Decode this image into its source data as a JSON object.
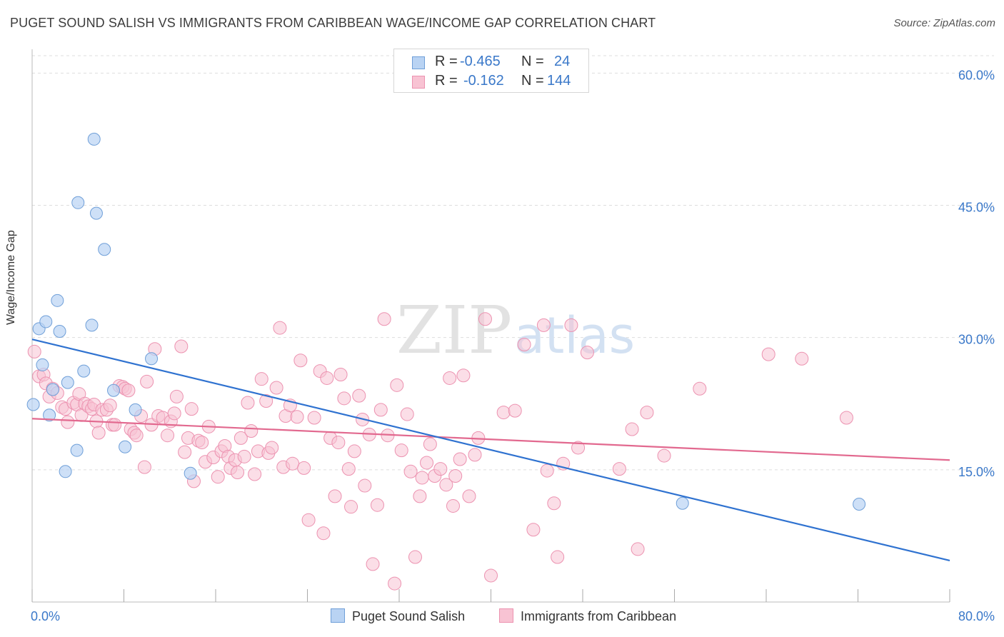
{
  "title": "PUGET SOUND SALISH VS IMMIGRANTS FROM CARIBBEAN WAGE/INCOME GAP CORRELATION CHART",
  "source": "Source: ZipAtlas.com",
  "watermark": {
    "zip": "ZIP",
    "atlas": "atlas"
  },
  "stats": {
    "row1": {
      "r_label": "R =",
      "r_value": "-0.465",
      "n_label": "N =",
      "n_value": "24"
    },
    "row2": {
      "r_label": "R =",
      "r_value": "-0.162",
      "n_label": "N =",
      "n_value": "144"
    }
  },
  "legend": {
    "item1": "Puget Sound Salish",
    "item2": "Immigrants from Caribbean"
  },
  "colors": {
    "blue_fill": "#b9d3f3",
    "blue_stroke": "#6f9fd8",
    "blue_line": "#2f72d0",
    "pink_fill": "#f8c3d3",
    "pink_stroke": "#ec92b0",
    "pink_line": "#e2698f",
    "tick_text": "#3a78c9",
    "grid": "#dddddd"
  },
  "chart_data": {
    "type": "scatter",
    "title": "PUGET SOUND SALISH VS IMMIGRANTS FROM CARIBBEAN WAGE/INCOME GAP CORRELATION CHART",
    "xlabel": "",
    "ylabel": "Wage/Income Gap",
    "xlim": [
      0,
      80
    ],
    "ylim": [
      0,
      62.7
    ],
    "x_tick_labels": [
      "0.0%",
      "80.0%"
    ],
    "y_ticks": [
      15,
      30,
      45,
      60
    ],
    "y_tick_labels": [
      "15.0%",
      "30.0%",
      "45.0%",
      "60.0%"
    ],
    "series": [
      {
        "name": "Puget Sound Salish",
        "r": -0.465,
        "n": 24,
        "trend": {
          "x": [
            0,
            80
          ],
          "y": [
            29.8,
            4.7
          ]
        },
        "points": [
          [
            0.1,
            22.4
          ],
          [
            0.6,
            31.0
          ],
          [
            0.9,
            26.9
          ],
          [
            1.2,
            31.8
          ],
          [
            1.5,
            21.2
          ],
          [
            1.8,
            24.1
          ],
          [
            2.2,
            34.2
          ],
          [
            2.4,
            30.7
          ],
          [
            2.9,
            14.8
          ],
          [
            3.1,
            24.9
          ],
          [
            3.9,
            17.2
          ],
          [
            4.0,
            45.3
          ],
          [
            4.5,
            26.2
          ],
          [
            5.2,
            31.4
          ],
          [
            5.4,
            52.5
          ],
          [
            5.6,
            44.1
          ],
          [
            6.3,
            40.0
          ],
          [
            7.1,
            24.0
          ],
          [
            8.1,
            17.6
          ],
          [
            9.0,
            21.8
          ],
          [
            10.4,
            27.6
          ],
          [
            13.8,
            14.6
          ],
          [
            56.7,
            11.2
          ],
          [
            72.1,
            11.1
          ]
        ]
      },
      {
        "name": "Immigrants from Caribbean",
        "r": -0.162,
        "n": 144,
        "trend": {
          "x": [
            0,
            80
          ],
          "y": [
            20.8,
            16.1
          ]
        },
        "points": [
          [
            0.2,
            28.4
          ],
          [
            0.6,
            25.6
          ],
          [
            1.0,
            25.8
          ],
          [
            1.2,
            24.8
          ],
          [
            1.5,
            23.3
          ],
          [
            1.8,
            24.2
          ],
          [
            2.2,
            23.7
          ],
          [
            2.6,
            22.1
          ],
          [
            2.9,
            21.9
          ],
          [
            3.1,
            20.4
          ],
          [
            3.6,
            22.6
          ],
          [
            3.9,
            22.4
          ],
          [
            4.1,
            23.6
          ],
          [
            4.3,
            21.2
          ],
          [
            4.6,
            22.5
          ],
          [
            4.9,
            22.2
          ],
          [
            5.2,
            21.9
          ],
          [
            5.4,
            22.4
          ],
          [
            5.6,
            20.5
          ],
          [
            5.8,
            19.2
          ],
          [
            6.1,
            21.8
          ],
          [
            6.5,
            21.8
          ],
          [
            6.8,
            22.3
          ],
          [
            7.0,
            20.1
          ],
          [
            7.2,
            20.1
          ],
          [
            7.6,
            24.5
          ],
          [
            7.9,
            24.4
          ],
          [
            8.1,
            24.2
          ],
          [
            8.4,
            24.0
          ],
          [
            8.6,
            19.6
          ],
          [
            8.9,
            19.2
          ],
          [
            9.1,
            18.9
          ],
          [
            9.5,
            21.1
          ],
          [
            9.8,
            15.3
          ],
          [
            10.0,
            25.0
          ],
          [
            10.4,
            20.1
          ],
          [
            10.7,
            28.7
          ],
          [
            11.0,
            21.1
          ],
          [
            11.4,
            20.9
          ],
          [
            11.8,
            18.9
          ],
          [
            12.1,
            20.5
          ],
          [
            12.4,
            21.4
          ],
          [
            12.6,
            23.3
          ],
          [
            13.0,
            29.0
          ],
          [
            13.3,
            17.0
          ],
          [
            13.6,
            18.6
          ],
          [
            13.9,
            21.9
          ],
          [
            14.1,
            13.7
          ],
          [
            14.5,
            18.3
          ],
          [
            14.8,
            18.1
          ],
          [
            15.1,
            15.9
          ],
          [
            15.4,
            19.9
          ],
          [
            15.8,
            16.4
          ],
          [
            16.2,
            14.2
          ],
          [
            16.5,
            17.1
          ],
          [
            16.8,
            17.7
          ],
          [
            17.1,
            16.5
          ],
          [
            17.3,
            15.2
          ],
          [
            17.7,
            16.1
          ],
          [
            17.9,
            14.7
          ],
          [
            18.2,
            18.6
          ],
          [
            18.5,
            16.5
          ],
          [
            18.8,
            22.6
          ],
          [
            19.1,
            19.4
          ],
          [
            19.4,
            14.5
          ],
          [
            19.7,
            17.1
          ],
          [
            20.0,
            25.3
          ],
          [
            20.4,
            22.8
          ],
          [
            20.6,
            16.9
          ],
          [
            20.9,
            17.5
          ],
          [
            21.3,
            24.3
          ],
          [
            21.6,
            31.1
          ],
          [
            21.9,
            15.3
          ],
          [
            22.1,
            21.1
          ],
          [
            22.5,
            22.3
          ],
          [
            22.7,
            15.7
          ],
          [
            23.1,
            21.0
          ],
          [
            23.4,
            27.4
          ],
          [
            23.7,
            15.2
          ],
          [
            24.1,
            9.3
          ],
          [
            24.6,
            20.9
          ],
          [
            25.1,
            26.2
          ],
          [
            25.4,
            7.8
          ],
          [
            25.7,
            25.4
          ],
          [
            26.0,
            18.6
          ],
          [
            26.4,
            12.0
          ],
          [
            26.7,
            18.1
          ],
          [
            26.9,
            25.8
          ],
          [
            27.2,
            23.1
          ],
          [
            27.6,
            15.1
          ],
          [
            27.8,
            10.8
          ],
          [
            28.1,
            17.1
          ],
          [
            28.5,
            23.4
          ],
          [
            28.8,
            20.7
          ],
          [
            29.0,
            13.2
          ],
          [
            29.4,
            19.0
          ],
          [
            29.7,
            4.3
          ],
          [
            30.1,
            11.0
          ],
          [
            30.4,
            21.8
          ],
          [
            30.7,
            32.1
          ],
          [
            31.0,
            18.9
          ],
          [
            31.6,
            2.1
          ],
          [
            31.8,
            24.6
          ],
          [
            32.2,
            17.2
          ],
          [
            32.7,
            21.3
          ],
          [
            33.0,
            14.8
          ],
          [
            33.4,
            5.1
          ],
          [
            33.8,
            12.0
          ],
          [
            34.0,
            14.1
          ],
          [
            34.4,
            15.8
          ],
          [
            34.7,
            17.9
          ],
          [
            35.1,
            14.3
          ],
          [
            35.6,
            15.1
          ],
          [
            36.1,
            13.3
          ],
          [
            36.4,
            25.4
          ],
          [
            36.7,
            10.9
          ],
          [
            36.9,
            14.3
          ],
          [
            37.3,
            16.2
          ],
          [
            37.6,
            25.7
          ],
          [
            38.1,
            12.0
          ],
          [
            38.6,
            16.7
          ],
          [
            38.9,
            18.6
          ],
          [
            39.5,
            32.1
          ],
          [
            40.0,
            3.0
          ],
          [
            41.1,
            21.5
          ],
          [
            42.1,
            21.7
          ],
          [
            42.9,
            29.2
          ],
          [
            43.7,
            8.2
          ],
          [
            44.6,
            31.4
          ],
          [
            44.9,
            14.9
          ],
          [
            45.5,
            11.2
          ],
          [
            45.8,
            5.1
          ],
          [
            46.3,
            15.7
          ],
          [
            47.0,
            31.4
          ],
          [
            47.6,
            17.5
          ],
          [
            48.4,
            28.3
          ],
          [
            51.2,
            15.1
          ],
          [
            52.3,
            19.6
          ],
          [
            52.8,
            6.0
          ],
          [
            53.6,
            21.5
          ],
          [
            55.1,
            16.6
          ],
          [
            58.2,
            24.2
          ],
          [
            64.2,
            28.1
          ],
          [
            67.1,
            27.6
          ],
          [
            71.0,
            20.9
          ]
        ]
      }
    ]
  }
}
